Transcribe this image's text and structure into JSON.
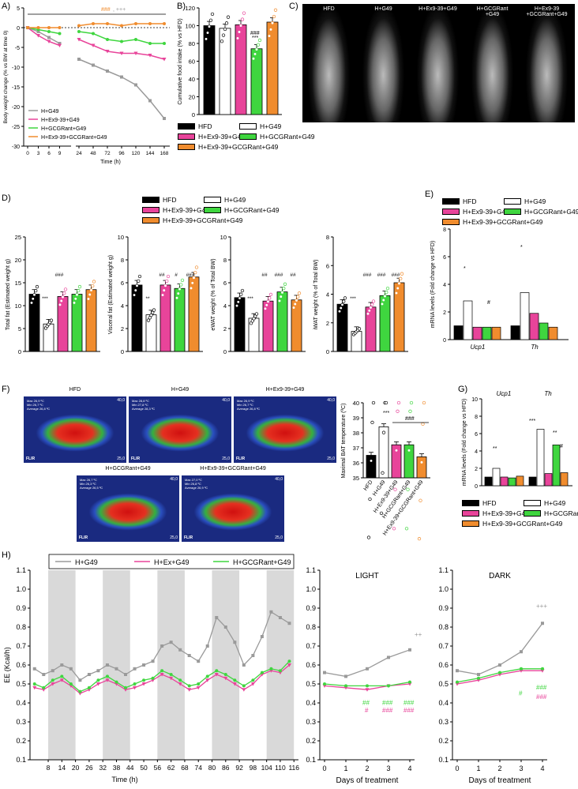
{
  "colors": {
    "hfd": "#000000",
    "g49": "#ffffff",
    "ex": "#e8449a",
    "gcgr": "#3fd63f",
    "combo": "#f08c2e",
    "g49_line": "#9a9a9a",
    "shade": "#d9d9d9"
  },
  "panel_labels": {
    "a": "A)",
    "b": "B)",
    "c": "C)",
    "d": "D)",
    "e": "E)",
    "f": "F)",
    "g": "G)",
    "h": "H)"
  },
  "legend_groups": [
    "HFD",
    "H+G49",
    "H+Ex9-39+G49",
    "H+GCGRant+G49",
    "H+Ex9-39+GCGRant+G49"
  ],
  "panel_a": {
    "ylabel": "Body weight change (% vs BW at time 0)",
    "xlabel": "Time (h)",
    "legend": [
      "H+G49",
      "H+Ex9-39+G49",
      "H+GCGRant+G49",
      "H+Ex9-39+GCGRant+G49"
    ],
    "top_annotation_1": "###",
    "top_annotation_2": ", +++",
    "sig_ex": [
      "*",
      "++",
      "++"
    ],
    "sig_gcgr": [
      "###",
      "###",
      "###",
      "###"
    ]
  },
  "panel_b": {
    "ylabel": "Cumulative food intake (% vs HFD)",
    "sig": "***",
    "sig2": "###"
  },
  "panel_c": {
    "labels": [
      "HFD",
      "H+G49",
      "H+Ex9-39+G49",
      "H+GCGRant\n+G49",
      "H+Ex9-39\n+GCGRant+G49"
    ]
  },
  "panel_d": {
    "charts": [
      {
        "ylabel": "Total fat (Estimated weight g)",
        "sig": [
          "***",
          "###"
        ]
      },
      {
        "ylabel": "Visceral fat (Estimated weight g)",
        "sig": [
          "**",
          "##",
          "#",
          "###"
        ]
      },
      {
        "ylabel": "eWAT weight (% of Total BW)",
        "sig": [
          "***",
          "##",
          "###",
          "##"
        ]
      },
      {
        "ylabel": "iWAT  weight (% of Total BW)",
        "sig": [
          "***",
          "###",
          "###",
          "###"
        ]
      }
    ]
  },
  "panel_e": {
    "ylabel": "mRNA levels (Fold change vs HFD)",
    "genes": [
      "Ucp1",
      "Th"
    ],
    "sig": [
      "*",
      "#",
      "*"
    ]
  },
  "panel_f": {
    "labels": [
      "HFD",
      "H+G49",
      "H+Ex9-39+G49",
      "H+GCGRant+G49",
      "H+Ex9-39+GCGRant+G49"
    ],
    "ylabel": "Maximal BAT temperature (ºC)",
    "scale_top": "40,0",
    "scale_bottom": "25,0",
    "brand": "FLIR",
    "readouts": [
      [
        "Max 26,9 ºC",
        "Min 26,7 ºC",
        "Average 26,8 ºC"
      ],
      [
        "Max 28,8 ºC",
        "Min 27,8 ºC",
        "Average 28,3 ºC"
      ],
      [
        "Max 26,9 ºC",
        "Min 26,7 ºC",
        "Average 26,8 ºC"
      ],
      [
        "Max 26,7 ºC",
        "Min 26,3 ºC",
        "Average 26,5 ºC"
      ],
      [
        "Max 27,0 ºC",
        "Min 26,8 ºC",
        "Average 26,9 ºC"
      ]
    ],
    "sig": [
      "***",
      "###"
    ]
  },
  "panel_g": {
    "ylabel": "mRNA levels (Fold change vs HFD)",
    "genes": [
      "Ucp1",
      "Th"
    ],
    "sig": [
      "**",
      "***",
      "**",
      "#"
    ]
  },
  "panel_h": {
    "ylabel": "EE (Kcal/h)",
    "xlabel": "Time (h)",
    "legend": [
      "H+G49",
      "H+Ex+G49",
      "H+GCGRant+G49"
    ],
    "light_title": "LIGHT",
    "dark_title": "DARK",
    "days_xlabel": "Days of treatment",
    "light_sig": [
      "++",
      "##",
      "#",
      "###",
      "###",
      "###",
      "###"
    ],
    "dark_sig": [
      "+++",
      "#",
      "###",
      "###"
    ]
  },
  "chart_data": [
    {
      "id": "A",
      "type": "line",
      "xlabel": "Time (h)",
      "ylabel": "Body weight change (% vs BW at time 0)",
      "x_ticks": [
        "0",
        "3",
        "6",
        "9",
        "24",
        "48",
        "72",
        "96",
        "120",
        "144",
        "168"
      ],
      "ylim": [
        -30,
        5
      ],
      "y_ticks": [
        5,
        0,
        -5,
        -10,
        -15,
        -20,
        -25,
        -30
      ],
      "series": [
        {
          "name": "H+G49",
          "x": [
            0,
            3,
            6,
            9,
            24,
            48,
            72,
            96,
            120,
            144,
            168
          ],
          "values": [
            0,
            -1,
            -2.5,
            -4,
            -8,
            -9.5,
            -11,
            -12.5,
            -14.5,
            -18.5,
            -23
          ]
        },
        {
          "name": "H+Ex9-39+G49",
          "x": [
            0,
            3,
            6,
            9,
            24,
            48,
            72,
            96,
            120,
            144,
            168
          ],
          "values": [
            0,
            -2,
            -3.5,
            -4.5,
            -3,
            -4.5,
            -6,
            -6.5,
            -6.5,
            -7,
            -8
          ]
        },
        {
          "name": "H+GCGRant+G49",
          "x": [
            0,
            3,
            6,
            9,
            24,
            48,
            72,
            96,
            120,
            144,
            168
          ],
          "values": [
            0,
            -0.5,
            -1,
            -1.5,
            -1,
            -1.5,
            -3,
            -3.5,
            -3,
            -4,
            -4
          ]
        },
        {
          "name": "H+Ex9-39+GCGRant+G49",
          "x": [
            0,
            3,
            6,
            9,
            24,
            48,
            72,
            96,
            120,
            144,
            168
          ],
          "values": [
            0,
            0,
            0,
            0,
            0.5,
            1,
            1,
            0.5,
            1,
            1,
            1
          ]
        }
      ]
    },
    {
      "id": "B",
      "type": "bar",
      "ylabel": "Cumulative food intake (% vs HFD)",
      "categories": [
        "HFD",
        "H+G49",
        "H+Ex9-39+G49",
        "H+GCGRant+G49",
        "H+Ex9-39+GCGRant+G49"
      ],
      "values": [
        100,
        97,
        101,
        74,
        104
      ],
      "ylim": [
        0,
        120
      ],
      "y_ticks": [
        0,
        20,
        40,
        60,
        80,
        100,
        120
      ]
    },
    {
      "id": "D1",
      "type": "bar",
      "ylabel": "Total fat (Estimated weight g)",
      "categories": [
        "HFD",
        "H+G49",
        "H+Ex9-39+G49",
        "H+GCGRant+G49",
        "H+Ex9-39+GCGRant+G49"
      ],
      "values": [
        12.5,
        6,
        12,
        12.5,
        13.5
      ],
      "ylim": [
        0,
        25
      ],
      "y_ticks": [
        0,
        5,
        10,
        15,
        20,
        25
      ]
    },
    {
      "id": "D2",
      "type": "bar",
      "ylabel": "Visceral fat (Estimated weight g)",
      "categories": [
        "HFD",
        "H+G49",
        "H+Ex9-39+G49",
        "H+GCGRant+G49",
        "H+Ex9-39+GCGRant+G49"
      ],
      "values": [
        5.8,
        3.2,
        5.8,
        5.5,
        6.5
      ],
      "ylim": [
        0,
        10
      ],
      "y_ticks": [
        0,
        2,
        4,
        6,
        8,
        10
      ]
    },
    {
      "id": "D3",
      "type": "bar",
      "ylabel": "eWAT weight (% of Total BW)",
      "categories": [
        "HFD",
        "H+G49",
        "H+Ex9-39+G49",
        "H+GCGRant+G49",
        "H+Ex9-39+GCGRant+G49"
      ],
      "values": [
        4.7,
        2.9,
        4.4,
        5.2,
        4.5
      ],
      "ylim": [
        0,
        10
      ],
      "y_ticks": [
        0,
        2,
        4,
        6,
        8,
        10
      ]
    },
    {
      "id": "D4",
      "type": "bar",
      "ylabel": "iWAT  weight (% of Total BW)",
      "categories": [
        "HFD",
        "H+G49",
        "H+Ex9-39+G49",
        "H+GCGRant+G49",
        "H+Ex9-39+GCGRant+G49"
      ],
      "values": [
        3.3,
        1.4,
        3.1,
        3.9,
        4.8
      ],
      "ylim": [
        0,
        8
      ],
      "y_ticks": [
        0,
        2,
        4,
        6,
        8
      ]
    },
    {
      "id": "E",
      "type": "bar",
      "ylabel": "mRNA levels (Fold change vs HFD)",
      "categories": [
        "Ucp1",
        "Th"
      ],
      "series": [
        {
          "name": "HFD",
          "values": [
            1,
            1
          ]
        },
        {
          "name": "H+G49",
          "values": [
            2.8,
            3.4
          ]
        },
        {
          "name": "H+Ex9-39+G49",
          "values": [
            0.9,
            1.9
          ]
        },
        {
          "name": "H+GCGRant+G49",
          "values": [
            0.9,
            1.2
          ]
        },
        {
          "name": "H+Ex9-39+GCGRant+G49",
          "values": [
            0.9,
            0.9
          ]
        }
      ],
      "ylim": [
        0,
        8
      ],
      "y_ticks": [
        0,
        2,
        4,
        6,
        8
      ]
    },
    {
      "id": "F",
      "type": "bar",
      "ylabel": "Maximal BAT temperature (ºC)",
      "categories": [
        "HFD",
        "H+G49",
        "H+Ex9-39+G49",
        "H+GCGRant+G49",
        "H+Ex9-39+GCGRant+G49"
      ],
      "values": [
        36.5,
        38.4,
        37.2,
        37.2,
        36.4
      ],
      "ylim": [
        35,
        40
      ],
      "y_ticks": [
        35,
        36,
        37,
        38,
        39,
        40
      ]
    },
    {
      "id": "G",
      "type": "bar",
      "ylabel": "mRNA levels (Fold change vs HFD)",
      "categories": [
        "Ucp1",
        "Th"
      ],
      "series": [
        {
          "name": "HFD",
          "values": [
            1,
            1
          ]
        },
        {
          "name": "H+G49",
          "values": [
            2.0,
            6.5
          ]
        },
        {
          "name": "H+Ex9-39+G49",
          "values": [
            1.0,
            1.4
          ]
        },
        {
          "name": "H+GCGRant+G49",
          "values": [
            0.9,
            4.7
          ]
        },
        {
          "name": "H+Ex9-39+GCGRant+G49",
          "values": [
            1.1,
            1.5
          ]
        }
      ],
      "ylim": [
        0,
        10
      ],
      "y_ticks": [
        0,
        2,
        4,
        6,
        8,
        10
      ]
    },
    {
      "id": "H1",
      "type": "line",
      "xlabel": "Time (h)",
      "ylabel": "EE (Kcal/h)",
      "x_ticks": [
        "8",
        "14",
        "20",
        "26",
        "32",
        "38",
        "44",
        "50",
        "56",
        "62",
        "68",
        "74",
        "80",
        "86",
        "92",
        "98",
        "104",
        "110",
        "116"
      ],
      "ylim": [
        0.1,
        1.1
      ],
      "y_ticks": [
        0.1,
        0.2,
        0.3,
        0.4,
        0.5,
        0.6,
        0.7,
        0.8,
        0.9,
        1.0,
        1.1
      ],
      "dark_phases_h": [
        [
          8,
          20
        ],
        [
          32,
          44
        ],
        [
          56,
          68
        ],
        [
          80,
          92
        ],
        [
          104,
          116
        ]
      ],
      "series": [
        {
          "name": "H+G49",
          "x": [
            2,
            6,
            10,
            14,
            18,
            22,
            26,
            30,
            34,
            38,
            42,
            46,
            50,
            54,
            58,
            62,
            66,
            70,
            74,
            78,
            82,
            86,
            90,
            94,
            98,
            102,
            106,
            110,
            114
          ],
          "values": [
            0.58,
            0.55,
            0.57,
            0.6,
            0.58,
            0.52,
            0.55,
            0.57,
            0.6,
            0.58,
            0.55,
            0.58,
            0.6,
            0.62,
            0.7,
            0.72,
            0.68,
            0.65,
            0.62,
            0.7,
            0.85,
            0.8,
            0.72,
            0.6,
            0.65,
            0.75,
            0.88,
            0.85,
            0.82
          ]
        },
        {
          "name": "H+Ex+G49",
          "x": [
            2,
            6,
            10,
            14,
            18,
            22,
            26,
            30,
            34,
            38,
            42,
            46,
            50,
            54,
            58,
            62,
            66,
            70,
            74,
            78,
            82,
            86,
            90,
            94,
            98,
            102,
            106,
            110,
            114
          ],
          "values": [
            0.48,
            0.47,
            0.5,
            0.52,
            0.49,
            0.45,
            0.47,
            0.5,
            0.52,
            0.5,
            0.47,
            0.48,
            0.5,
            0.52,
            0.55,
            0.53,
            0.5,
            0.47,
            0.48,
            0.52,
            0.55,
            0.53,
            0.5,
            0.47,
            0.5,
            0.55,
            0.57,
            0.56,
            0.6
          ]
        },
        {
          "name": "H+GCGRant+G49",
          "x": [
            2,
            6,
            10,
            14,
            18,
            22,
            26,
            30,
            34,
            38,
            42,
            46,
            50,
            54,
            58,
            62,
            66,
            70,
            74,
            78,
            82,
            86,
            90,
            94,
            98,
            102,
            106,
            110,
            114
          ],
          "values": [
            0.5,
            0.48,
            0.52,
            0.54,
            0.5,
            0.46,
            0.48,
            0.52,
            0.54,
            0.51,
            0.48,
            0.5,
            0.52,
            0.53,
            0.57,
            0.55,
            0.52,
            0.49,
            0.5,
            0.54,
            0.57,
            0.55,
            0.52,
            0.49,
            0.52,
            0.56,
            0.58,
            0.57,
            0.62
          ]
        }
      ]
    },
    {
      "id": "H2",
      "type": "line",
      "title": "LIGHT",
      "xlabel": "Days of treatment",
      "x": [
        0,
        1,
        2,
        3,
        4
      ],
      "ylim": [
        0.1,
        1.1
      ],
      "series": [
        {
          "name": "H+G49",
          "values": [
            0.56,
            0.54,
            0.58,
            0.64,
            0.68
          ]
        },
        {
          "name": "H+Ex+G49",
          "values": [
            0.49,
            0.48,
            0.47,
            0.49,
            0.5
          ]
        },
        {
          "name": "H+GCGRant+G49",
          "values": [
            0.5,
            0.49,
            0.49,
            0.49,
            0.51
          ]
        }
      ]
    },
    {
      "id": "H3",
      "type": "line",
      "title": "DARK",
      "xlabel": "Days of treatment",
      "x": [
        0,
        1,
        2,
        3,
        4
      ],
      "ylim": [
        0.1,
        1.1
      ],
      "series": [
        {
          "name": "H+G49",
          "values": [
            0.57,
            0.55,
            0.6,
            0.67,
            0.82
          ]
        },
        {
          "name": "H+Ex+G49",
          "values": [
            0.5,
            0.52,
            0.55,
            0.57,
            0.57
          ]
        },
        {
          "name": "H+GCGRant+G49",
          "values": [
            0.51,
            0.53,
            0.56,
            0.58,
            0.58
          ]
        }
      ]
    }
  ]
}
